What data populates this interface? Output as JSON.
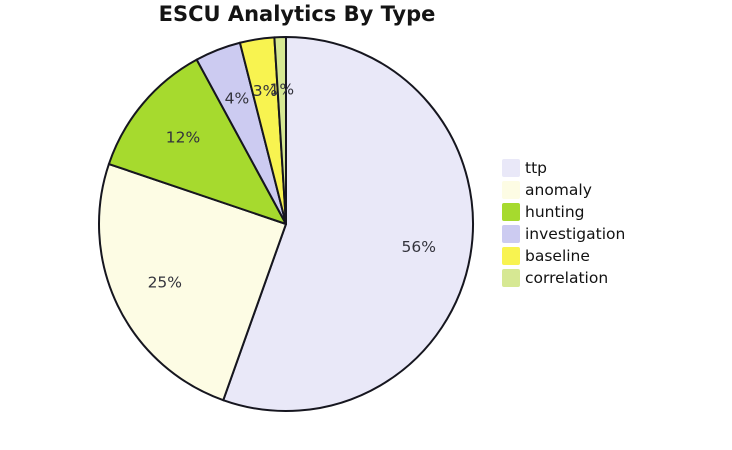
{
  "chart_data": {
    "type": "pie",
    "title": "ESCU Analytics By Type",
    "direction": "clockwise",
    "start_angle": "12-o-clock",
    "legend_position": "right",
    "outline_color": "#16161f",
    "label_color": "#33333c",
    "slices": [
      {
        "label": "ttp",
        "value": 56,
        "pct_label": "56%",
        "color": "#E9E8F8"
      },
      {
        "label": "anomaly",
        "value": 25,
        "pct_label": "25%",
        "color": "#FDFCE4"
      },
      {
        "label": "hunting",
        "value": 12,
        "pct_label": "12%",
        "color": "#A6DA2E"
      },
      {
        "label": "investigation",
        "value": 4,
        "pct_label": "4%",
        "color": "#CCCBF1"
      },
      {
        "label": "baseline",
        "value": 3,
        "pct_label": "3%",
        "color": "#F8F350"
      },
      {
        "label": "correlation",
        "value": 1,
        "pct_label": "1%",
        "color": "#D6E893"
      }
    ]
  }
}
